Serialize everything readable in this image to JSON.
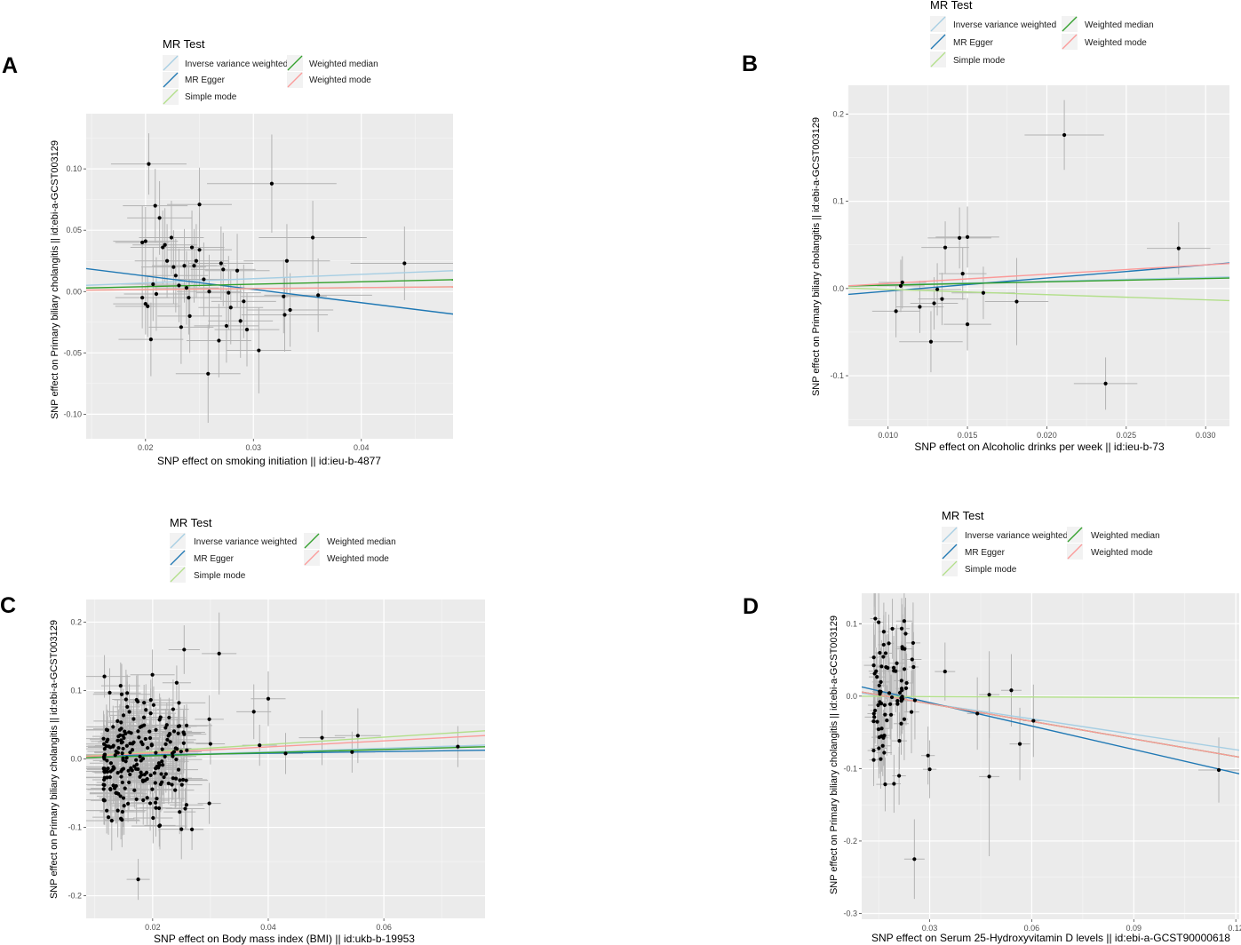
{
  "figure": {
    "name": "mr-scatter-four-panels"
  },
  "legend": {
    "title": "MR Test",
    "methods": [
      {
        "key": "ivw",
        "label": "Inverse variance weighted",
        "color": "#a6cee3"
      },
      {
        "key": "egger",
        "label": "MR Egger",
        "color": "#1f78b4"
      },
      {
        "key": "simple",
        "label": "Simple mode",
        "color": "#b2df8a"
      },
      {
        "key": "wmedian",
        "label": "Weighted median",
        "color": "#33a02c"
      },
      {
        "key": "wmode",
        "label": "Weighted mode",
        "color": "#fb9a99"
      }
    ]
  },
  "chart_data": [
    {
      "type": "scatter",
      "panel": "A",
      "xlabel": "SNP effect on smoking initiation || id:ieu-b-4877",
      "ylabel": "SNP effect on Primary biliary cholangitis || id:ebi-a-GCST003129",
      "xlim": [
        0.0145,
        0.0485
      ],
      "ylim": [
        -0.12,
        0.145
      ],
      "xticks": [
        0.02,
        0.03,
        0.04
      ],
      "yticks": [
        -0.1,
        -0.05,
        0.0,
        0.05,
        0.1
      ],
      "xtick_labels": [
        "0.02",
        "0.03",
        "0.04"
      ],
      "ytick_labels": [
        "-0.10",
        "-0.05",
        "0.00",
        "0.05",
        "0.10"
      ],
      "lines": [
        {
          "method": "ivw",
          "intercept": 0,
          "slope": 0.35
        },
        {
          "method": "egger",
          "intercept": 0.0345,
          "slope": -1.09
        },
        {
          "method": "simple",
          "intercept": 0,
          "slope": 0.08
        },
        {
          "method": "wmedian",
          "intercept": 0,
          "slope": 0.2
        },
        {
          "method": "wmode",
          "intercept": 0,
          "slope": 0.08
        }
      ],
      "points": [
        {
          "x": 0.0203,
          "y": 0.104,
          "xe": 0.0035,
          "ye": 0.025
        },
        {
          "x": 0.0197,
          "y": 0.04,
          "xe": 0.0025,
          "ye": 0.03
        },
        {
          "x": 0.02,
          "y": 0.041,
          "xe": 0.003,
          "ye": 0.028
        },
        {
          "x": 0.0197,
          "y": -0.005,
          "xe": 0.0025,
          "ye": 0.025
        },
        {
          "x": 0.02,
          "y": -0.01,
          "xe": 0.003,
          "ye": 0.025
        },
        {
          "x": 0.0202,
          "y": -0.012,
          "xe": 0.003,
          "ye": 0.025
        },
        {
          "x": 0.0205,
          "y": -0.039,
          "xe": 0.003,
          "ye": 0.03
        },
        {
          "x": 0.0209,
          "y": 0.07,
          "xe": 0.003,
          "ye": 0.03
        },
        {
          "x": 0.0213,
          "y": 0.06,
          "xe": 0.003,
          "ye": 0.03
        },
        {
          "x": 0.0216,
          "y": 0.036,
          "xe": 0.003,
          "ye": 0.03
        },
        {
          "x": 0.0218,
          "y": 0.038,
          "xe": 0.003,
          "ye": 0.03
        },
        {
          "x": 0.0207,
          "y": 0.006,
          "xe": 0.003,
          "ye": 0.03
        },
        {
          "x": 0.021,
          "y": -0.002,
          "xe": 0.003,
          "ye": 0.03
        },
        {
          "x": 0.022,
          "y": 0.025,
          "xe": 0.003,
          "ye": 0.03
        },
        {
          "x": 0.0224,
          "y": 0.044,
          "xe": 0.003,
          "ye": 0.03
        },
        {
          "x": 0.0226,
          "y": 0.02,
          "xe": 0.003,
          "ye": 0.03
        },
        {
          "x": 0.0228,
          "y": 0.013,
          "xe": 0.003,
          "ye": 0.03
        },
        {
          "x": 0.0231,
          "y": 0.005,
          "xe": 0.003,
          "ye": 0.03
        },
        {
          "x": 0.0233,
          "y": -0.029,
          "xe": 0.003,
          "ye": 0.03
        },
        {
          "x": 0.0236,
          "y": 0.021,
          "xe": 0.003,
          "ye": 0.03
        },
        {
          "x": 0.0238,
          "y": 0.003,
          "xe": 0.003,
          "ye": 0.03
        },
        {
          "x": 0.024,
          "y": -0.005,
          "xe": 0.003,
          "ye": 0.03
        },
        {
          "x": 0.0241,
          "y": -0.02,
          "xe": 0.003,
          "ye": 0.03
        },
        {
          "x": 0.0243,
          "y": 0.036,
          "xe": 0.003,
          "ye": 0.03
        },
        {
          "x": 0.0245,
          "y": 0.021,
          "xe": 0.003,
          "ye": 0.03
        },
        {
          "x": 0.0247,
          "y": 0.025,
          "xe": 0.003,
          "ye": 0.03
        },
        {
          "x": 0.025,
          "y": 0.071,
          "xe": 0.003,
          "ye": 0.03
        },
        {
          "x": 0.025,
          "y": 0.034,
          "xe": 0.003,
          "ye": 0.03
        },
        {
          "x": 0.0254,
          "y": 0.01,
          "xe": 0.003,
          "ye": 0.03
        },
        {
          "x": 0.0258,
          "y": -0.067,
          "xe": 0.003,
          "ye": 0.04
        },
        {
          "x": 0.0259,
          "y": 0.0,
          "xe": 0.003,
          "ye": 0.03
        },
        {
          "x": 0.0268,
          "y": -0.04,
          "xe": 0.003,
          "ye": 0.03
        },
        {
          "x": 0.027,
          "y": 0.023,
          "xe": 0.003,
          "ye": 0.03
        },
        {
          "x": 0.0272,
          "y": 0.018,
          "xe": 0.003,
          "ye": 0.03
        },
        {
          "x": 0.0275,
          "y": -0.028,
          "xe": 0.003,
          "ye": 0.03
        },
        {
          "x": 0.0277,
          "y": -0.001,
          "xe": 0.003,
          "ye": 0.03
        },
        {
          "x": 0.0279,
          "y": -0.013,
          "xe": 0.003,
          "ye": 0.03
        },
        {
          "x": 0.0285,
          "y": 0.017,
          "xe": 0.003,
          "ye": 0.03
        },
        {
          "x": 0.0288,
          "y": -0.024,
          "xe": 0.003,
          "ye": 0.03
        },
        {
          "x": 0.0291,
          "y": -0.008,
          "xe": 0.003,
          "ye": 0.03
        },
        {
          "x": 0.0294,
          "y": -0.031,
          "xe": 0.003,
          "ye": 0.03
        },
        {
          "x": 0.0305,
          "y": -0.048,
          "xe": 0.003,
          "ye": 0.035
        },
        {
          "x": 0.0317,
          "y": 0.088,
          "xe": 0.006,
          "ye": 0.04
        },
        {
          "x": 0.0328,
          "y": -0.004,
          "xe": 0.004,
          "ye": 0.03
        },
        {
          "x": 0.0329,
          "y": -0.019,
          "xe": 0.004,
          "ye": 0.03
        },
        {
          "x": 0.0331,
          "y": 0.025,
          "xe": 0.004,
          "ye": 0.03
        },
        {
          "x": 0.0334,
          "y": -0.015,
          "xe": 0.004,
          "ye": 0.03
        },
        {
          "x": 0.0355,
          "y": 0.044,
          "xe": 0.005,
          "ye": 0.03
        },
        {
          "x": 0.036,
          "y": -0.003,
          "xe": 0.005,
          "ye": 0.03
        },
        {
          "x": 0.044,
          "y": 0.023,
          "xe": 0.005,
          "ye": 0.03
        }
      ]
    },
    {
      "type": "scatter",
      "panel": "B",
      "xlabel": "SNP effect on Alcoholic drinks per week || id:ieu-b-73",
      "ylabel": "SNP effect on Primary biliary cholangitis || id:ebi-a-GCST003129",
      "xlim": [
        0.0075,
        0.0315
      ],
      "ylim": [
        -0.158,
        0.233
      ],
      "xticks": [
        0.01,
        0.015,
        0.02,
        0.025,
        0.03
      ],
      "yticks": [
        -0.1,
        0.0,
        0.1,
        0.2
      ],
      "xtick_labels": [
        "0.010",
        "0.015",
        "0.020",
        "0.025",
        "0.030"
      ],
      "ytick_labels": [
        "-0.1",
        "0.0",
        "0.1",
        "0.2"
      ],
      "lines": [
        {
          "method": "ivw",
          "intercept": 0,
          "slope": 0.42
        },
        {
          "method": "egger",
          "intercept": -0.018,
          "slope": 1.5
        },
        {
          "method": "simple",
          "intercept": 0.005,
          "slope": -0.6
        },
        {
          "method": "wmedian",
          "intercept": 0,
          "slope": 0.38
        },
        {
          "method": "wmode",
          "intercept": -0.005,
          "slope": 1.07
        }
      ],
      "points": [
        {
          "x": 0.0105,
          "y": -0.026,
          "xe": 0.0015,
          "ye": 0.03
        },
        {
          "x": 0.0108,
          "y": 0.003,
          "xe": 0.0015,
          "ye": 0.03
        },
        {
          "x": 0.0109,
          "y": 0.007,
          "xe": 0.0015,
          "ye": 0.03
        },
        {
          "x": 0.012,
          "y": -0.021,
          "xe": 0.0015,
          "ye": 0.03
        },
        {
          "x": 0.0127,
          "y": -0.061,
          "xe": 0.002,
          "ye": 0.035
        },
        {
          "x": 0.0129,
          "y": -0.017,
          "xe": 0.0015,
          "ye": 0.03
        },
        {
          "x": 0.0131,
          "y": -0.001,
          "xe": 0.0015,
          "ye": 0.03
        },
        {
          "x": 0.0134,
          "y": -0.012,
          "xe": 0.0015,
          "ye": 0.03
        },
        {
          "x": 0.0136,
          "y": 0.047,
          "xe": 0.0015,
          "ye": 0.03
        },
        {
          "x": 0.0145,
          "y": 0.058,
          "xe": 0.002,
          "ye": 0.035
        },
        {
          "x": 0.0147,
          "y": 0.017,
          "xe": 0.0015,
          "ye": 0.03
        },
        {
          "x": 0.015,
          "y": 0.059,
          "xe": 0.002,
          "ye": 0.035
        },
        {
          "x": 0.015,
          "y": -0.041,
          "xe": 0.0015,
          "ye": 0.03
        },
        {
          "x": 0.016,
          "y": -0.005,
          "xe": 0.002,
          "ye": 0.03
        },
        {
          "x": 0.0181,
          "y": -0.015,
          "xe": 0.002,
          "ye": 0.05
        },
        {
          "x": 0.0211,
          "y": 0.176,
          "xe": 0.0025,
          "ye": 0.04
        },
        {
          "x": 0.0237,
          "y": -0.109,
          "xe": 0.002,
          "ye": 0.03
        },
        {
          "x": 0.0283,
          "y": 0.046,
          "xe": 0.002,
          "ye": 0.03
        }
      ]
    },
    {
      "type": "scatter",
      "panel": "C",
      "xlabel": "SNP effect on Body mass index (BMI) || id:ukb-b-19953",
      "ylabel": "SNP effect on Primary biliary cholangitis || id:ebi-a-GCST003129",
      "xlim": [
        0.0085,
        0.0775
      ],
      "ylim": [
        -0.233,
        0.233
      ],
      "xticks": [
        0.02,
        0.04,
        0.06
      ],
      "yticks": [
        -0.2,
        -0.1,
        0.0,
        0.1,
        0.2
      ],
      "xtick_labels": [
        "0.02",
        "0.04",
        "0.06"
      ],
      "ytick_labels": [
        "-0.2",
        "-0.1",
        "0.0",
        "0.1",
        "0.2"
      ],
      "lines": [
        {
          "method": "ivw",
          "intercept": 0,
          "slope": 0.26
        },
        {
          "method": "egger",
          "intercept": 0.0035,
          "slope": 0.12
        },
        {
          "method": "simple",
          "intercept": 0,
          "slope": 0.53
        },
        {
          "method": "wmedian",
          "intercept": 0,
          "slope": 0.23
        },
        {
          "method": "wmode",
          "intercept": 0,
          "slope": 0.44
        }
      ],
      "cluster": {
        "count": 230,
        "seed": 7,
        "x_min": 0.0115,
        "x_max": 0.026,
        "x_spread": 0.003,
        "y_mean": 0.002,
        "y_sd": 0.042,
        "xe_min": 0.002,
        "xe_max": 0.005,
        "ye_min": 0.025,
        "ye_max": 0.045
      },
      "points": [
        {
          "x": 0.0175,
          "y": -0.176,
          "xe": 0.002,
          "ye": 0.03
        },
        {
          "x": 0.0147,
          "y": -0.089,
          "xe": 0.003,
          "ye": 0.04
        },
        {
          "x": 0.0268,
          "y": -0.103,
          "xe": 0.002,
          "ye": 0.03
        },
        {
          "x": 0.0298,
          "y": -0.065,
          "xe": 0.002,
          "ye": 0.03
        },
        {
          "x": 0.0298,
          "y": 0.058,
          "xe": 0.0025,
          "ye": 0.035
        },
        {
          "x": 0.03,
          "y": 0.022,
          "xe": 0.0025,
          "ye": 0.03
        },
        {
          "x": 0.0315,
          "y": 0.154,
          "xe": 0.003,
          "ye": 0.06
        },
        {
          "x": 0.0375,
          "y": 0.069,
          "xe": 0.003,
          "ye": 0.04
        },
        {
          "x": 0.0385,
          "y": 0.02,
          "xe": 0.003,
          "ye": 0.03
        },
        {
          "x": 0.04,
          "y": 0.088,
          "xe": 0.003,
          "ye": 0.04
        },
        {
          "x": 0.043,
          "y": 0.008,
          "xe": 0.003,
          "ye": 0.03
        },
        {
          "x": 0.0493,
          "y": 0.031,
          "xe": 0.004,
          "ye": 0.04
        },
        {
          "x": 0.0545,
          "y": 0.01,
          "xe": 0.004,
          "ye": 0.03
        },
        {
          "x": 0.0555,
          "y": 0.034,
          "xe": 0.004,
          "ye": 0.04
        },
        {
          "x": 0.0728,
          "y": 0.018,
          "xe": 0.004,
          "ye": 0.03
        }
      ]
    },
    {
      "type": "scatter",
      "panel": "D",
      "xlabel": "SNP effect on Serum 25-Hydroxyvitamin D levels || id:ebi-a-GCST90000618",
      "ylabel": "SNP effect on Primary biliary cholangitis || id:ebi-a-GCST003129",
      "xlim": [
        0.01,
        0.121
      ],
      "ylim": [
        -0.308,
        0.142
      ],
      "xticks": [
        0.03,
        0.06,
        0.09,
        0.12
      ],
      "yticks": [
        -0.3,
        -0.2,
        -0.1,
        0.0,
        0.1
      ],
      "xtick_labels": [
        "0.03",
        "0.06",
        "0.09",
        "0.12"
      ],
      "ytick_labels": [
        "-0.3",
        "-0.2",
        "-0.1",
        "0.0",
        "0.1"
      ],
      "lines": [
        {
          "method": "ivw",
          "intercept": 0.0112,
          "slope": -0.71
        },
        {
          "method": "egger",
          "intercept": 0.0235,
          "slope": -1.08
        },
        {
          "method": "simple",
          "intercept": 0,
          "slope": -0.02
        },
        {
          "method": "wmedian",
          "intercept": 0.0138,
          "slope": -0.81
        },
        {
          "method": "wmode",
          "intercept": 0.0138,
          "slope": -0.81
        }
      ],
      "cluster": {
        "count": 80,
        "seed": 11,
        "x_min": 0.0135,
        "x_max": 0.026,
        "x_spread": 0.0,
        "y_mean": 0.0,
        "y_sd": 0.048,
        "xe_min": 0.001,
        "xe_max": 0.003,
        "ye_min": 0.03,
        "ye_max": 0.06
      },
      "points": [
        {
          "x": 0.014,
          "y": 0.107,
          "xe": 0.0015,
          "ye": 0.04
        },
        {
          "x": 0.015,
          "y": 0.102,
          "xe": 0.0015,
          "ye": 0.04
        },
        {
          "x": 0.0165,
          "y": 0.089,
          "xe": 0.0015,
          "ye": 0.04
        },
        {
          "x": 0.0195,
          "y": -0.121,
          "xe": 0.002,
          "ye": 0.04
        },
        {
          "x": 0.021,
          "y": -0.11,
          "xe": 0.002,
          "ye": 0.04
        },
        {
          "x": 0.0255,
          "y": -0.225,
          "xe": 0.003,
          "ye": 0.055
        },
        {
          "x": 0.0295,
          "y": -0.082,
          "xe": 0.002,
          "ye": 0.04
        },
        {
          "x": 0.03,
          "y": -0.101,
          "xe": 0.002,
          "ye": 0.04
        },
        {
          "x": 0.0345,
          "y": 0.034,
          "xe": 0.003,
          "ye": 0.04
        },
        {
          "x": 0.044,
          "y": -0.024,
          "xe": 0.003,
          "ye": 0.05
        },
        {
          "x": 0.0475,
          "y": 0.002,
          "xe": 0.003,
          "ye": 0.06
        },
        {
          "x": 0.0475,
          "y": -0.111,
          "xe": 0.003,
          "ye": 0.11
        },
        {
          "x": 0.054,
          "y": 0.008,
          "xe": 0.003,
          "ye": 0.05
        },
        {
          "x": 0.0565,
          "y": -0.066,
          "xe": 0.003,
          "ye": 0.05
        },
        {
          "x": 0.0605,
          "y": -0.034,
          "xe": 0.003,
          "ye": 0.05
        },
        {
          "x": 0.115,
          "y": -0.102,
          "xe": 0.006,
          "ye": 0.045
        }
      ]
    }
  ]
}
